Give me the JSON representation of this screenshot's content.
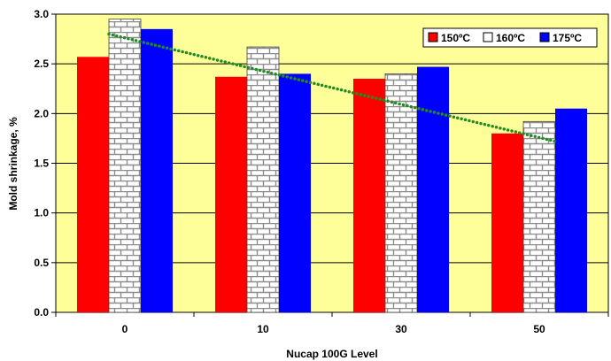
{
  "chart_data": {
    "type": "bar",
    "categories": [
      "0",
      "10",
      "30",
      "50"
    ],
    "series": [
      {
        "name": "150ºC",
        "values": [
          2.57,
          2.37,
          2.35,
          1.8
        ],
        "color": "#ff0000",
        "pattern": "solid"
      },
      {
        "name": "160ºC",
        "values": [
          2.95,
          2.67,
          2.4,
          1.92
        ],
        "color": "#ffffff",
        "pattern": "brick"
      },
      {
        "name": "175ºC",
        "values": [
          2.85,
          2.4,
          2.47,
          2.05
        ],
        "color": "#0000ff",
        "pattern": "solid"
      }
    ],
    "trendline": {
      "x_start": "0",
      "x_end": "50",
      "y_start": 2.8,
      "y_end": 1.72,
      "color": "#228b22",
      "style": "dotted"
    },
    "xlabel": "Nucap 100G Level",
    "ylabel": "Mold shrinkage, %",
    "ylim": [
      0.0,
      3.0
    ],
    "yticks": [
      "0.0",
      "0.5",
      "1.0",
      "1.5",
      "2.0",
      "2.5",
      "3.0"
    ],
    "grid": true,
    "legend_position": "top-right",
    "plot_background": "#ffff99"
  }
}
